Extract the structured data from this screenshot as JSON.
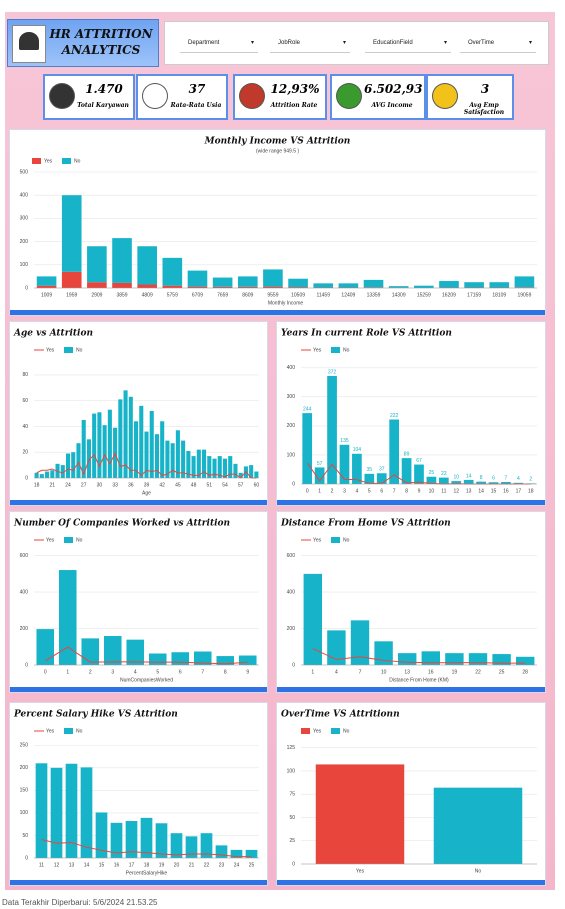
{
  "header": {
    "title": "HR ATTRITION ANALYTICS",
    "filters": [
      "Department",
      "JobRole",
      "EducationField",
      "OverTime"
    ]
  },
  "kpis": [
    {
      "value": "1.470",
      "label": "Total Karyawan"
    },
    {
      "value": "37",
      "label": "Rata-Rata Usia"
    },
    {
      "value": "12,93%",
      "label": "Attrition Rate"
    },
    {
      "value": "6.502,93",
      "label": "AVG Income"
    },
    {
      "value": "3",
      "label": "Avg Emp Satisfaction"
    }
  ],
  "footer": "Data Terakhir Diperbarui: 5/6/2024 21.53.25",
  "chart_data": [
    {
      "type": "stacked_bar",
      "title": "Monthly Income VS Attrition",
      "subtitle": "(wide range 949.5 )",
      "x_label": "Monthly Income",
      "categories": [
        "1009",
        "1959",
        "2909",
        "3859",
        "4809",
        "5759",
        "6709",
        "7659",
        "8609",
        "9559",
        "10509",
        "11459",
        "12409",
        "13359",
        "14309",
        "15259",
        "16209",
        "17159",
        "18109",
        "19059"
      ],
      "series": [
        {
          "name": "Yes",
          "color": "#e8463c",
          "values": [
            10,
            70,
            25,
            22,
            15,
            10,
            6,
            5,
            5,
            6,
            4,
            2,
            2,
            3,
            1,
            0,
            2,
            2,
            2,
            3
          ]
        },
        {
          "name": "No",
          "color": "#17b3c9",
          "values": [
            40,
            330,
            155,
            193,
            165,
            120,
            69,
            40,
            45,
            74,
            36,
            18,
            18,
            32,
            7,
            10,
            28,
            23,
            23,
            47
          ]
        }
      ],
      "ylim": [
        0,
        500
      ],
      "yticks": [
        0,
        100,
        200,
        300,
        400,
        500
      ],
      "grid": true
    },
    {
      "type": "combo",
      "title": "Age vs Attrition",
      "x_label": "Age",
      "categories": [
        "18",
        null,
        null,
        "21",
        null,
        null,
        "24",
        null,
        null,
        "27",
        null,
        null,
        "30",
        null,
        null,
        "33",
        null,
        null,
        "36",
        null,
        null,
        "39",
        null,
        null,
        "42",
        null,
        null,
        "45",
        null,
        null,
        "48",
        null,
        null,
        "51",
        null,
        null,
        "54",
        null,
        null,
        "57",
        null,
        null,
        "60"
      ],
      "series": [
        {
          "name": "Yes",
          "color": "#e8463c",
          "mark": "line",
          "values": [
            4,
            6,
            6,
            7,
            5,
            4,
            7,
            6,
            12,
            3,
            14,
            18,
            9,
            18,
            11,
            19,
            9,
            10,
            6,
            6,
            2,
            6,
            5,
            6,
            2,
            3,
            6,
            4,
            4,
            3,
            2,
            2,
            5,
            2,
            3,
            2,
            1,
            3,
            3,
            0,
            5,
            0,
            0
          ]
        },
        {
          "name": "No",
          "color": "#17b3c9",
          "mark": "bar",
          "values": [
            4,
            3,
            5,
            6,
            11,
            10,
            19,
            20,
            27,
            45,
            30,
            50,
            51,
            41,
            53,
            39,
            61,
            68,
            63,
            44,
            56,
            36,
            52,
            34,
            44,
            29,
            27,
            37,
            29,
            21,
            17,
            22,
            22,
            17,
            15,
            17,
            15,
            17,
            11,
            4,
            9,
            10,
            5
          ]
        }
      ],
      "ylim": [
        0,
        90
      ],
      "yticks": [
        0,
        20,
        40,
        60,
        80
      ],
      "grid": true
    },
    {
      "type": "combo",
      "title": "Years In current Role VS Attrition",
      "categories": [
        "0",
        "1",
        "2",
        "3",
        "4",
        "5",
        "6",
        "7",
        "8",
        "9",
        "10",
        "11",
        "12",
        "13",
        "14",
        "15",
        "16",
        "17",
        "18"
      ],
      "series": [
        {
          "name": "Yes",
          "color": "#e8463c",
          "mark": "line",
          "values": [
            73,
            11,
            68,
            16,
            15,
            2,
            2,
            31,
            4,
            6,
            2,
            0,
            1,
            0,
            0,
            0,
            0,
            0,
            0
          ]
        },
        {
          "name": "No",
          "color": "#17b3c9",
          "mark": "bar",
          "labels": true,
          "values": [
            244,
            57,
            372,
            135,
            104,
            35,
            37,
            222,
            89,
            67,
            25,
            22,
            10,
            14,
            8,
            6,
            7,
            4,
            2
          ]
        }
      ],
      "ylim": [
        0,
        420
      ],
      "yticks": [
        0,
        100,
        200,
        300,
        400
      ],
      "grid": true
    },
    {
      "type": "combo",
      "title": "Number Of Companies Worked vs Attrition",
      "x_label": "NumCompaniesWorked",
      "categories": [
        "0",
        "1",
        "2",
        "3",
        "4",
        "5",
        "6",
        "7",
        "8",
        "9"
      ],
      "series": [
        {
          "name": "Yes",
          "color": "#e8463c",
          "mark": "line",
          "values": [
            23,
            98,
            16,
            17,
            17,
            16,
            16,
            11,
            6,
            16
          ]
        },
        {
          "name": "No",
          "color": "#17b3c9",
          "mark": "bar",
          "values": [
            197,
            521,
            146,
            159,
            139,
            63,
            70,
            74,
            49,
            52
          ]
        }
      ],
      "ylim": [
        0,
        620
      ],
      "yticks": [
        0,
        200,
        400,
        600
      ],
      "grid": true
    },
    {
      "type": "combo",
      "title": "Distance From Home VS Attrition",
      "x_label": "Distance From Home (KM)",
      "categories": [
        "1",
        "4",
        "7",
        "10",
        "13",
        "16",
        "19",
        "22",
        "25",
        "28"
      ],
      "series": [
        {
          "name": "Yes",
          "color": "#e8463c",
          "mark": "line",
          "values": [
            90,
            30,
            45,
            25,
            15,
            12,
            13,
            13,
            10,
            10
          ]
        },
        {
          "name": "No",
          "color": "#17b3c9",
          "mark": "bar",
          "values": [
            500,
            190,
            245,
            130,
            65,
            75,
            65,
            65,
            60,
            45
          ]
        }
      ],
      "ylim": [
        0,
        620
      ],
      "yticks": [
        0,
        200,
        400,
        600
      ],
      "grid": true
    },
    {
      "type": "combo",
      "title": "Percent Salary Hike VS Attrition",
      "x_label": "PercentSalaryHike",
      "categories": [
        "11",
        "12",
        "13",
        "14",
        "15",
        "16",
        "17",
        "18",
        "19",
        "20",
        "21",
        "22",
        "23",
        "24",
        "25"
      ],
      "series": [
        {
          "name": "Yes",
          "color": "#e8463c",
          "mark": "line",
          "values": [
            41,
            33,
            34,
            24,
            17,
            11,
            14,
            12,
            9,
            7,
            9,
            9,
            7,
            3,
            3
          ]
        },
        {
          "name": "No",
          "color": "#17b3c9",
          "mark": "bar",
          "values": [
            210,
            200,
            209,
            201,
            101,
            78,
            82,
            89,
            77,
            55,
            48,
            55,
            28,
            18,
            18
          ]
        }
      ],
      "ylim": [
        0,
        255
      ],
      "yticks": [
        0,
        50,
        100,
        150,
        200,
        250
      ],
      "grid": true
    },
    {
      "type": "bar",
      "title": "OverTime VS Attritionn",
      "categories": [
        "Yes",
        "No"
      ],
      "colors": [
        "#e8463c",
        "#17b3c9"
      ],
      "values": [
        107,
        82
      ],
      "ylim": [
        0,
        130
      ],
      "yticks": [
        0,
        25,
        50,
        75,
        100,
        125
      ],
      "grid": true
    }
  ]
}
